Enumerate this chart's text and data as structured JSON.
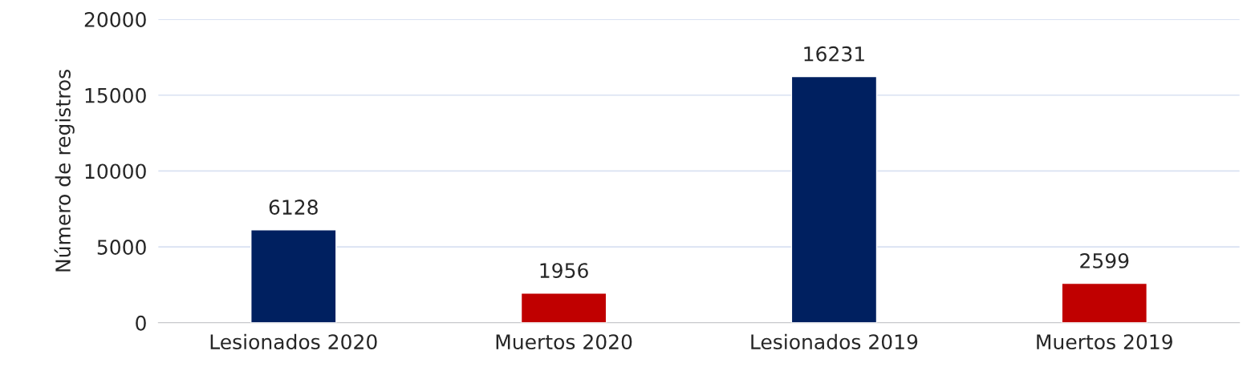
{
  "chart_data": {
    "type": "bar",
    "ylabel": "Número de registros",
    "categories": [
      "Lesionados 2020",
      "Muertos 2020",
      "Lesionados 2019",
      "Muertos 2019"
    ],
    "values": [
      6128,
      1956,
      16231,
      2599
    ],
    "colors": [
      "#002060",
      "#c00000",
      "#002060",
      "#c00000"
    ],
    "ylim": [
      0,
      20000
    ],
    "yticks": [
      0,
      5000,
      10000,
      15000,
      20000
    ],
    "grid": "y",
    "data_labels": true
  }
}
